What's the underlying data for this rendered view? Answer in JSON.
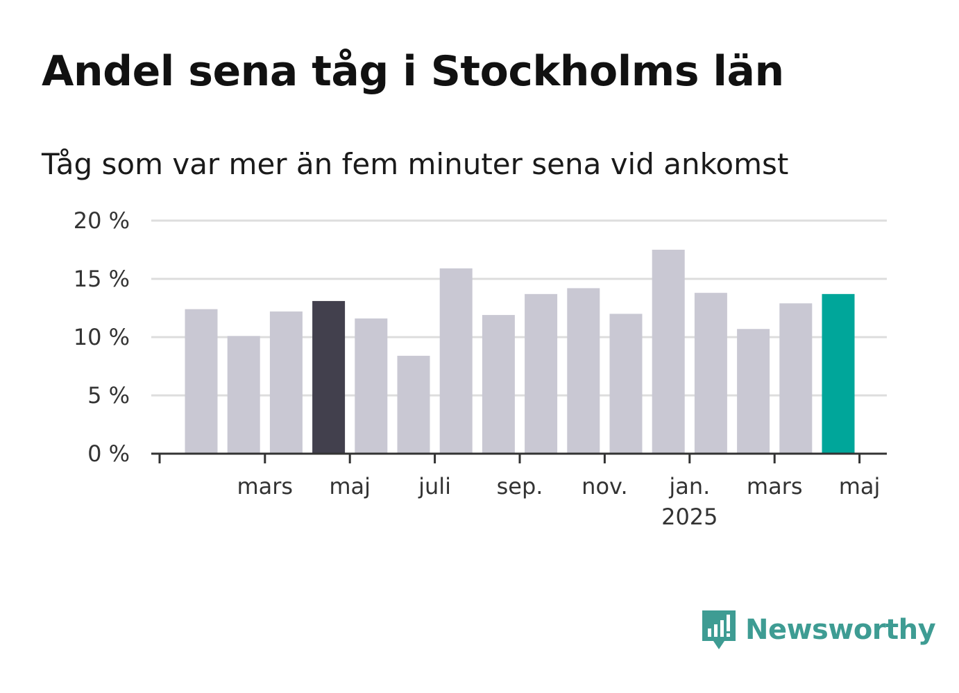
{
  "header": {
    "title": "Andel sena tåg i Stockholms län",
    "subtitle": "Tåg som var mer än fem minuter sena vid ankomst"
  },
  "brand": {
    "name": "Newsworthy",
    "icon": "bar-chart-speech-bubble-icon",
    "color": "#3e9c93"
  },
  "chart_data": {
    "type": "bar",
    "title": "",
    "xlabel": "",
    "ylabel": "",
    "ylim": [
      0,
      20
    ],
    "yticks": [
      0,
      5,
      10,
      15,
      20
    ],
    "ytick_labels": [
      "0 %",
      "5 %",
      "10 %",
      "15 %",
      "20 %"
    ],
    "grid": true,
    "categories": [
      "2024-01",
      "2024-02",
      "2024-03",
      "2024-04",
      "2024-05",
      "2024-06",
      "2024-07",
      "2024-08",
      "2024-09",
      "2024-10",
      "2024-11",
      "2024-12",
      "2025-01",
      "2025-02",
      "2025-03",
      "2025-04",
      "2025-05"
    ],
    "values": [
      12.4,
      10.1,
      12.2,
      13.1,
      11.6,
      8.4,
      15.9,
      11.9,
      13.7,
      14.2,
      12.0,
      17.5,
      13.8,
      10.7,
      12.9,
      13.7,
      0
    ],
    "colors": {
      "default": "#c9c8d3",
      "highlight_previous": "#42404d",
      "highlight_current": "#00a69a",
      "axis": "#333333",
      "grid": "#dddddd"
    },
    "highlight_previous_index": 3,
    "highlight_current_index": 15,
    "x_tick_labels": [
      {
        "index": 2,
        "label": "mars"
      },
      {
        "index": 4,
        "label": "maj"
      },
      {
        "index": 6,
        "label": "juli"
      },
      {
        "index": 8,
        "label": "sep."
      },
      {
        "index": 10,
        "label": "nov."
      },
      {
        "index": 12,
        "label": "jan.",
        "sublabel": "2025"
      },
      {
        "index": 14,
        "label": "mars"
      },
      {
        "index": 16,
        "label": "maj"
      }
    ]
  }
}
